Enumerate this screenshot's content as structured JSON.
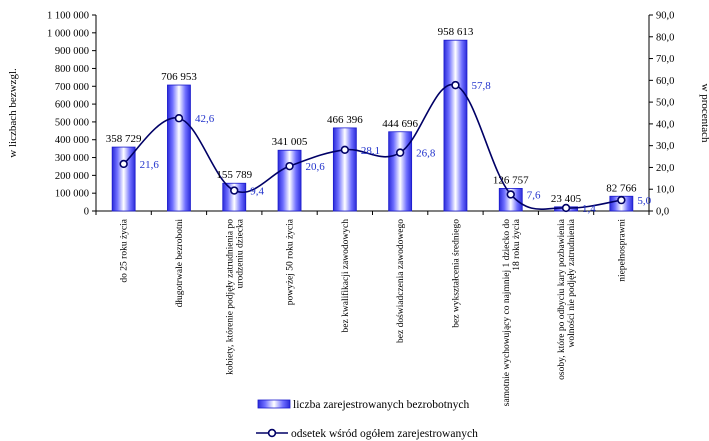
{
  "chart_data": {
    "type": "bar",
    "categories": [
      [
        "do 25 roku życia"
      ],
      [
        "długotrwale bezrobotni"
      ],
      [
        "kobiety, którenie podjęły zatrudnienia po",
        "urodzeniu dziecka"
      ],
      [
        "powyżej 50 roku życia"
      ],
      [
        "bez kwalifikacji zawodowych"
      ],
      [
        "bez doświadczenia zawodowego"
      ],
      [
        "bez wykształcenia średniego"
      ],
      [
        "samotnie wychowujący co najmniej 1 dziecko do",
        "18 roku życia"
      ],
      [
        "osoby, które po odbyciu kary pozbawienia",
        "wolności nie podjęły zatrudnienia"
      ],
      [
        "niepełnosprawni"
      ]
    ],
    "series": [
      {
        "name": "liczba zarejestrowanych bezrobotnych",
        "axis": "left",
        "values": [
          358729,
          706953,
          155789,
          341005,
          466396,
          444696,
          958613,
          126757,
          23405,
          82766
        ],
        "labels": [
          "358 729",
          "706 953",
          "155 789",
          "341 005",
          "466 396",
          "444 696",
          "958 613",
          "126 757",
          "23 405",
          "82 766"
        ]
      },
      {
        "name": "odsetek wśród ogółem zarejestrowanych",
        "axis": "right",
        "values": [
          21.6,
          42.6,
          9.4,
          20.6,
          28.1,
          26.8,
          57.8,
          7.6,
          1.4,
          5.0
        ],
        "labels": [
          "21,6",
          "42,6",
          "9,4",
          "20,6",
          "28,1",
          "26,8",
          "57,8",
          "7,6",
          "1,4",
          "5,0"
        ]
      }
    ],
    "ylabel_left": "w liczbach bezwzgl.",
    "ylabel_right": "w procentach",
    "ylim_left": [
      0,
      1100000
    ],
    "ylim_right": [
      0,
      90
    ],
    "yticks_left": [
      "0",
      "100 000",
      "200 000",
      "300 000",
      "400 000",
      "500 000",
      "600 000",
      "700 000",
      "800 000",
      "900 000",
      "1 000 000",
      "1 100 000"
    ],
    "yticks_right": [
      "0,0",
      "10,0",
      "20,0",
      "30,0",
      "40,0",
      "50,0",
      "60,0",
      "70,0",
      "80,0",
      "90,0"
    ],
    "grid": false,
    "legend_position": "bottom",
    "colors": {
      "bar_fill": "#3d3dff",
      "bar_highlight": "#ffffff",
      "line": "#000066",
      "pct_label": "#2233cc"
    }
  }
}
